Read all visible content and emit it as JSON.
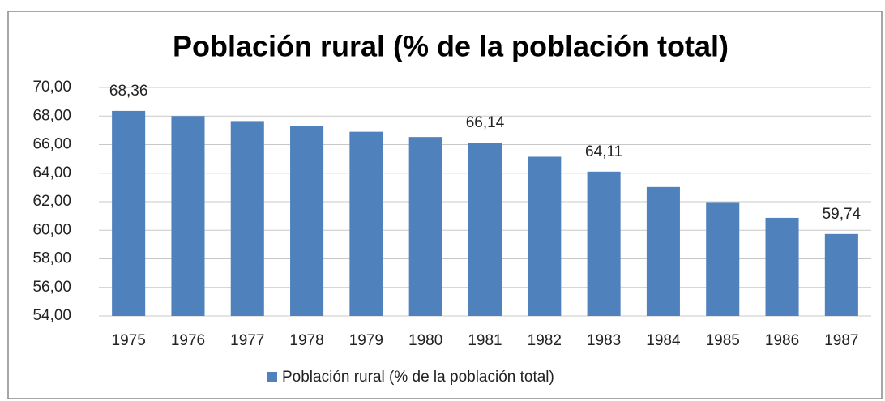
{
  "chart_data": {
    "type": "bar",
    "title": "Población rural (% de la población total)",
    "categories": [
      "1975",
      "1976",
      "1977",
      "1978",
      "1979",
      "1980",
      "1981",
      "1982",
      "1983",
      "1984",
      "1985",
      "1986",
      "1987"
    ],
    "series": [
      {
        "name": "Población rural (% de la población total)",
        "color": "#4f81bd",
        "values": [
          68.36,
          68.0,
          67.65,
          67.28,
          66.9,
          66.53,
          66.14,
          65.15,
          64.11,
          63.03,
          61.97,
          60.87,
          59.74
        ],
        "value_labels": [
          "68,36",
          null,
          null,
          null,
          null,
          null,
          "66,14",
          null,
          "64,11",
          null,
          null,
          null,
          "59,74"
        ]
      }
    ],
    "ylim": [
      54,
      70
    ],
    "yticks": [
      {
        "value": 54,
        "label": "54,00"
      },
      {
        "value": 56,
        "label": "56,00"
      },
      {
        "value": 58,
        "label": "58,00"
      },
      {
        "value": 60,
        "label": "60,00"
      },
      {
        "value": 62,
        "label": "62,00"
      },
      {
        "value": 64,
        "label": "64,00"
      },
      {
        "value": 66,
        "label": "66,00"
      },
      {
        "value": 68,
        "label": "68,00"
      },
      {
        "value": 70,
        "label": "70,00"
      }
    ],
    "grid": true,
    "legend": "bottom"
  }
}
